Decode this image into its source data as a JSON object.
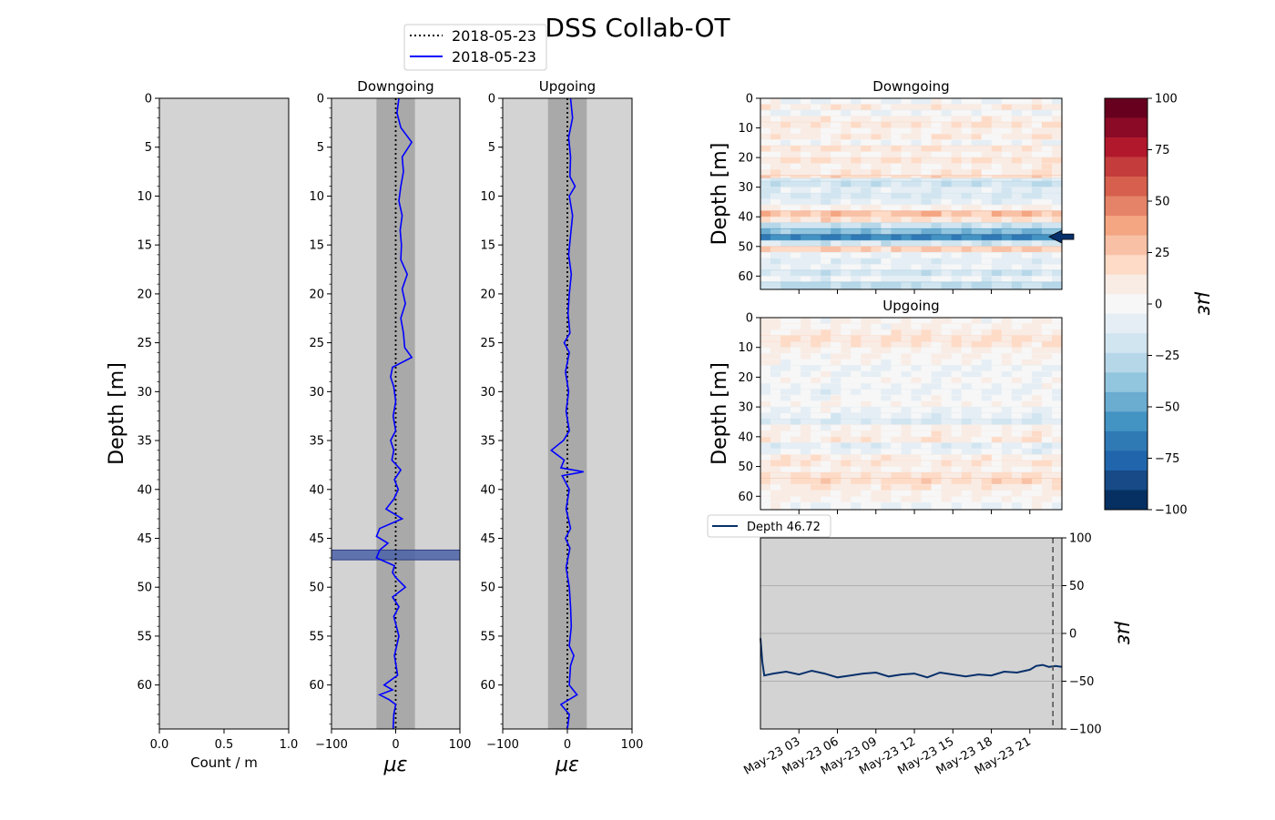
{
  "figure": {
    "title": "DSS Collab-OT",
    "legend": [
      {
        "label": "2018-05-23",
        "style": "dotted",
        "color": "#000000"
      },
      {
        "label": "2018-05-23",
        "style": "solid",
        "color": "#0000ff"
      }
    ]
  },
  "colors": {
    "axes_bg": "#d3d3d3",
    "band": "#a9a9a9",
    "profile_line": "#0000ff",
    "highlight": "#4a62a8",
    "timeseries_line": "#08306b",
    "arrow": "#08306b"
  },
  "chart_data": [
    {
      "id": "histogram",
      "type": "bar",
      "xlabel": "Count / m",
      "ylabel": "Depth [m]",
      "xlim": [
        0.0,
        1.0
      ],
      "ylim": [
        64.5,
        0
      ],
      "xticks": [
        "0.0",
        "0.5",
        "1.0"
      ],
      "yticks": [
        0,
        5,
        10,
        15,
        20,
        25,
        30,
        35,
        40,
        45,
        50,
        55,
        60
      ],
      "values": []
    },
    {
      "id": "downgoing",
      "type": "line",
      "title": "Downgoing",
      "xlabel": "με",
      "xlim": [
        -100,
        100
      ],
      "ylim": [
        64.5,
        0
      ],
      "xticks": [
        "−100",
        "0",
        "100"
      ],
      "yticks": [
        0,
        5,
        10,
        15,
        20,
        25,
        30,
        35,
        40,
        45,
        50,
        55,
        60
      ],
      "band": [
        -30,
        30
      ],
      "highlight_depth": [
        46.2,
        47.2
      ],
      "series": [
        {
          "style": "dotted",
          "x": [
            0,
            0
          ],
          "y": [
            0,
            64.5
          ]
        },
        {
          "style": "solid",
          "profile": [
            [
              0,
              5
            ],
            [
              1.5,
              2
            ],
            [
              3,
              8
            ],
            [
              4.5,
              25
            ],
            [
              6,
              10
            ],
            [
              7.5,
              12
            ],
            [
              9,
              8
            ],
            [
              10.5,
              5
            ],
            [
              12,
              10
            ],
            [
              13.5,
              7
            ],
            [
              15,
              9
            ],
            [
              16.5,
              8
            ],
            [
              18,
              18
            ],
            [
              19.5,
              10
            ],
            [
              21,
              15
            ],
            [
              22.5,
              8
            ],
            [
              24,
              12
            ],
            [
              25.5,
              14
            ],
            [
              26.5,
              25
            ],
            [
              27.5,
              -5
            ],
            [
              28.5,
              -8
            ],
            [
              29.5,
              -3
            ],
            [
              31,
              0
            ],
            [
              32.5,
              -4
            ],
            [
              34,
              0
            ],
            [
              35,
              -8
            ],
            [
              36,
              -3
            ],
            [
              37,
              -6
            ],
            [
              38,
              8
            ],
            [
              39,
              -2
            ],
            [
              40,
              4
            ],
            [
              41,
              -3
            ],
            [
              42,
              -15
            ],
            [
              43,
              10
            ],
            [
              44,
              -25
            ],
            [
              44.8,
              -30
            ],
            [
              45.5,
              -12
            ],
            [
              46.2,
              -25
            ],
            [
              47,
              -30
            ],
            [
              47.8,
              -2
            ],
            [
              48.5,
              -5
            ],
            [
              49,
              0
            ],
            [
              50,
              15
            ],
            [
              51,
              -5
            ],
            [
              52,
              5
            ],
            [
              53,
              -3
            ],
            [
              55,
              5
            ],
            [
              57,
              -2
            ],
            [
              59,
              3
            ],
            [
              60,
              -18
            ],
            [
              60.5,
              -5
            ],
            [
              61,
              -25
            ],
            [
              61.5,
              -10
            ],
            [
              62,
              0
            ],
            [
              63,
              -3
            ],
            [
              64.5,
              -4
            ]
          ]
        }
      ]
    },
    {
      "id": "upgoing",
      "type": "line",
      "title": "Upgoing",
      "xlabel": "με",
      "xlim": [
        -100,
        100
      ],
      "ylim": [
        64.5,
        0
      ],
      "xticks": [
        "−100",
        "0",
        "100"
      ],
      "yticks": [
        0,
        5,
        10,
        15,
        20,
        25,
        30,
        35,
        40,
        45,
        50,
        55,
        60
      ],
      "band": [
        -30,
        30
      ],
      "series": [
        {
          "style": "dotted",
          "x": [
            0,
            0
          ],
          "y": [
            0,
            64.5
          ]
        },
        {
          "style": "solid",
          "profile": [
            [
              0,
              5
            ],
            [
              2,
              8
            ],
            [
              4,
              2
            ],
            [
              6,
              5
            ],
            [
              8,
              4
            ],
            [
              9,
              12
            ],
            [
              10,
              3
            ],
            [
              12,
              8
            ],
            [
              14,
              5
            ],
            [
              16,
              2
            ],
            [
              18,
              6
            ],
            [
              20,
              3
            ],
            [
              22,
              1
            ],
            [
              24,
              4
            ],
            [
              25,
              -5
            ],
            [
              26,
              3
            ],
            [
              28,
              -3
            ],
            [
              30,
              2
            ],
            [
              32,
              -2
            ],
            [
              34,
              3
            ],
            [
              35,
              -6
            ],
            [
              36,
              -25
            ],
            [
              37,
              -5
            ],
            [
              37.8,
              -10
            ],
            [
              38.2,
              25
            ],
            [
              38.6,
              -8
            ],
            [
              40,
              3
            ],
            [
              42,
              -2
            ],
            [
              44,
              5
            ],
            [
              45,
              -3
            ],
            [
              46,
              4
            ],
            [
              48,
              -2
            ],
            [
              50,
              3
            ],
            [
              52,
              5
            ],
            [
              54,
              6
            ],
            [
              56,
              3
            ],
            [
              57,
              10
            ],
            [
              58,
              5
            ],
            [
              60,
              3
            ],
            [
              61,
              15
            ],
            [
              62,
              -10
            ],
            [
              63,
              3
            ],
            [
              64.5,
              0
            ]
          ]
        }
      ]
    },
    {
      "id": "heatmap-down",
      "type": "heatmap",
      "title": "Downgoing",
      "ylabel": "Depth [m]",
      "ylim": [
        64.5,
        0
      ],
      "yticks": [
        0,
        10,
        20,
        30,
        40,
        50,
        60
      ],
      "zlim": [
        -100,
        100
      ],
      "layers": [
        [
          0,
          2,
          -2
        ],
        [
          2,
          4,
          10
        ],
        [
          4,
          6,
          -4
        ],
        [
          6,
          8,
          8
        ],
        [
          8,
          10,
          12
        ],
        [
          10,
          12,
          5
        ],
        [
          12,
          14,
          10
        ],
        [
          14,
          16,
          -3
        ],
        [
          16,
          18,
          12
        ],
        [
          18,
          20,
          5
        ],
        [
          20,
          22,
          14
        ],
        [
          22,
          24,
          7
        ],
        [
          24,
          26,
          10
        ],
        [
          26,
          27,
          18
        ],
        [
          27,
          28,
          -12
        ],
        [
          28,
          30,
          -20
        ],
        [
          30,
          32,
          -10
        ],
        [
          32,
          34,
          -15
        ],
        [
          34,
          36,
          -8
        ],
        [
          36,
          38,
          5
        ],
        [
          38,
          40,
          28
        ],
        [
          40,
          42,
          15
        ],
        [
          42,
          44,
          -20
        ],
        [
          44,
          46,
          -40
        ],
        [
          46,
          48,
          -62
        ],
        [
          48,
          50,
          -18
        ],
        [
          50,
          52,
          22
        ],
        [
          52,
          54,
          -5
        ],
        [
          54,
          56,
          -10
        ],
        [
          56,
          58,
          -5
        ],
        [
          58,
          60,
          -18
        ],
        [
          60,
          62,
          -8
        ],
        [
          62,
          64.5,
          -25
        ]
      ],
      "marker_depth": 46.72
    },
    {
      "id": "heatmap-up",
      "type": "heatmap",
      "title": "Upgoing",
      "ylabel": "Depth [m]",
      "ylim": [
        64.5,
        0
      ],
      "yticks": [
        0,
        10,
        20,
        30,
        40,
        50,
        60
      ],
      "zlim": [
        -100,
        100
      ],
      "layers": [
        [
          0,
          2,
          2
        ],
        [
          2,
          4,
          4
        ],
        [
          4,
          6,
          8
        ],
        [
          6,
          8,
          14
        ],
        [
          8,
          10,
          12
        ],
        [
          10,
          12,
          5
        ],
        [
          12,
          14,
          3
        ],
        [
          14,
          16,
          2
        ],
        [
          16,
          18,
          -5
        ],
        [
          18,
          20,
          -3
        ],
        [
          20,
          22,
          2
        ],
        [
          22,
          24,
          -3
        ],
        [
          24,
          26,
          -6
        ],
        [
          26,
          28,
          -2
        ],
        [
          28,
          30,
          3
        ],
        [
          30,
          32,
          -4
        ],
        [
          32,
          34,
          -8
        ],
        [
          34,
          36,
          -14
        ],
        [
          36,
          38,
          4
        ],
        [
          38,
          40,
          6
        ],
        [
          40,
          42,
          10
        ],
        [
          42,
          44,
          -10
        ],
        [
          44,
          46,
          -6
        ],
        [
          46,
          48,
          8
        ],
        [
          48,
          50,
          12
        ],
        [
          50,
          52,
          5
        ],
        [
          52,
          54,
          14
        ],
        [
          54,
          56,
          18
        ],
        [
          56,
          58,
          10
        ],
        [
          58,
          60,
          6
        ],
        [
          60,
          62,
          4
        ],
        [
          62,
          64.5,
          -2
        ]
      ]
    },
    {
      "id": "colorbar",
      "type": "heatmap",
      "label": "με",
      "zlim": [
        -100,
        100
      ],
      "ticks": [
        "100",
        "75",
        "50",
        "25",
        "0",
        "−25",
        "−50",
        "−75",
        "−100"
      ],
      "colors": [
        "#67001f",
        "#8b0a25",
        "#b2182b",
        "#c43c3c",
        "#d6604d",
        "#e58368",
        "#f4a582",
        "#f8c1a6",
        "#fddbc7",
        "#f9ece5",
        "#f7f7f7",
        "#e5eef4",
        "#d1e5f0",
        "#b6d7e8",
        "#92c5de",
        "#6bacd1",
        "#4393c3",
        "#2f79b5",
        "#2166ac",
        "#174a86",
        "#053061"
      ]
    },
    {
      "id": "timeseries",
      "type": "line",
      "ylabel": "με",
      "ylim": [
        -100,
        100
      ],
      "yticks": [
        "100",
        "50",
        "0",
        "−50",
        "−100"
      ],
      "x_range_hours": [
        0.0,
        23.5
      ],
      "xticks": [
        {
          "hour": 3,
          "label": "May-23 03"
        },
        {
          "hour": 6,
          "label": "May-23 06"
        },
        {
          "hour": 9,
          "label": "May-23 09"
        },
        {
          "hour": 12,
          "label": "May-23 12"
        },
        {
          "hour": 15,
          "label": "May-23 15"
        },
        {
          "hour": 18,
          "label": "May-23 18"
        },
        {
          "hour": 21,
          "label": "May-23 21"
        }
      ],
      "vline_hour": 22.8,
      "series": [
        {
          "name": "Depth 46.72",
          "points": [
            [
              0.0,
              -5
            ],
            [
              0.15,
              -30
            ],
            [
              0.3,
              -44
            ],
            [
              1,
              -42
            ],
            [
              2,
              -40
            ],
            [
              3,
              -43
            ],
            [
              4,
              -39
            ],
            [
              5,
              -42
            ],
            [
              6,
              -46
            ],
            [
              7,
              -44
            ],
            [
              8,
              -42
            ],
            [
              9,
              -41
            ],
            [
              10,
              -45
            ],
            [
              11,
              -43
            ],
            [
              12,
              -42
            ],
            [
              13,
              -46
            ],
            [
              14,
              -41
            ],
            [
              15,
              -43
            ],
            [
              16,
              -45
            ],
            [
              17,
              -43
            ],
            [
              18,
              -44
            ],
            [
              19,
              -40
            ],
            [
              20,
              -41
            ],
            [
              21,
              -38
            ],
            [
              21.5,
              -34
            ],
            [
              22,
              -33
            ],
            [
              22.5,
              -35
            ],
            [
              23,
              -34
            ],
            [
              23.5,
              -35
            ]
          ]
        }
      ]
    }
  ]
}
